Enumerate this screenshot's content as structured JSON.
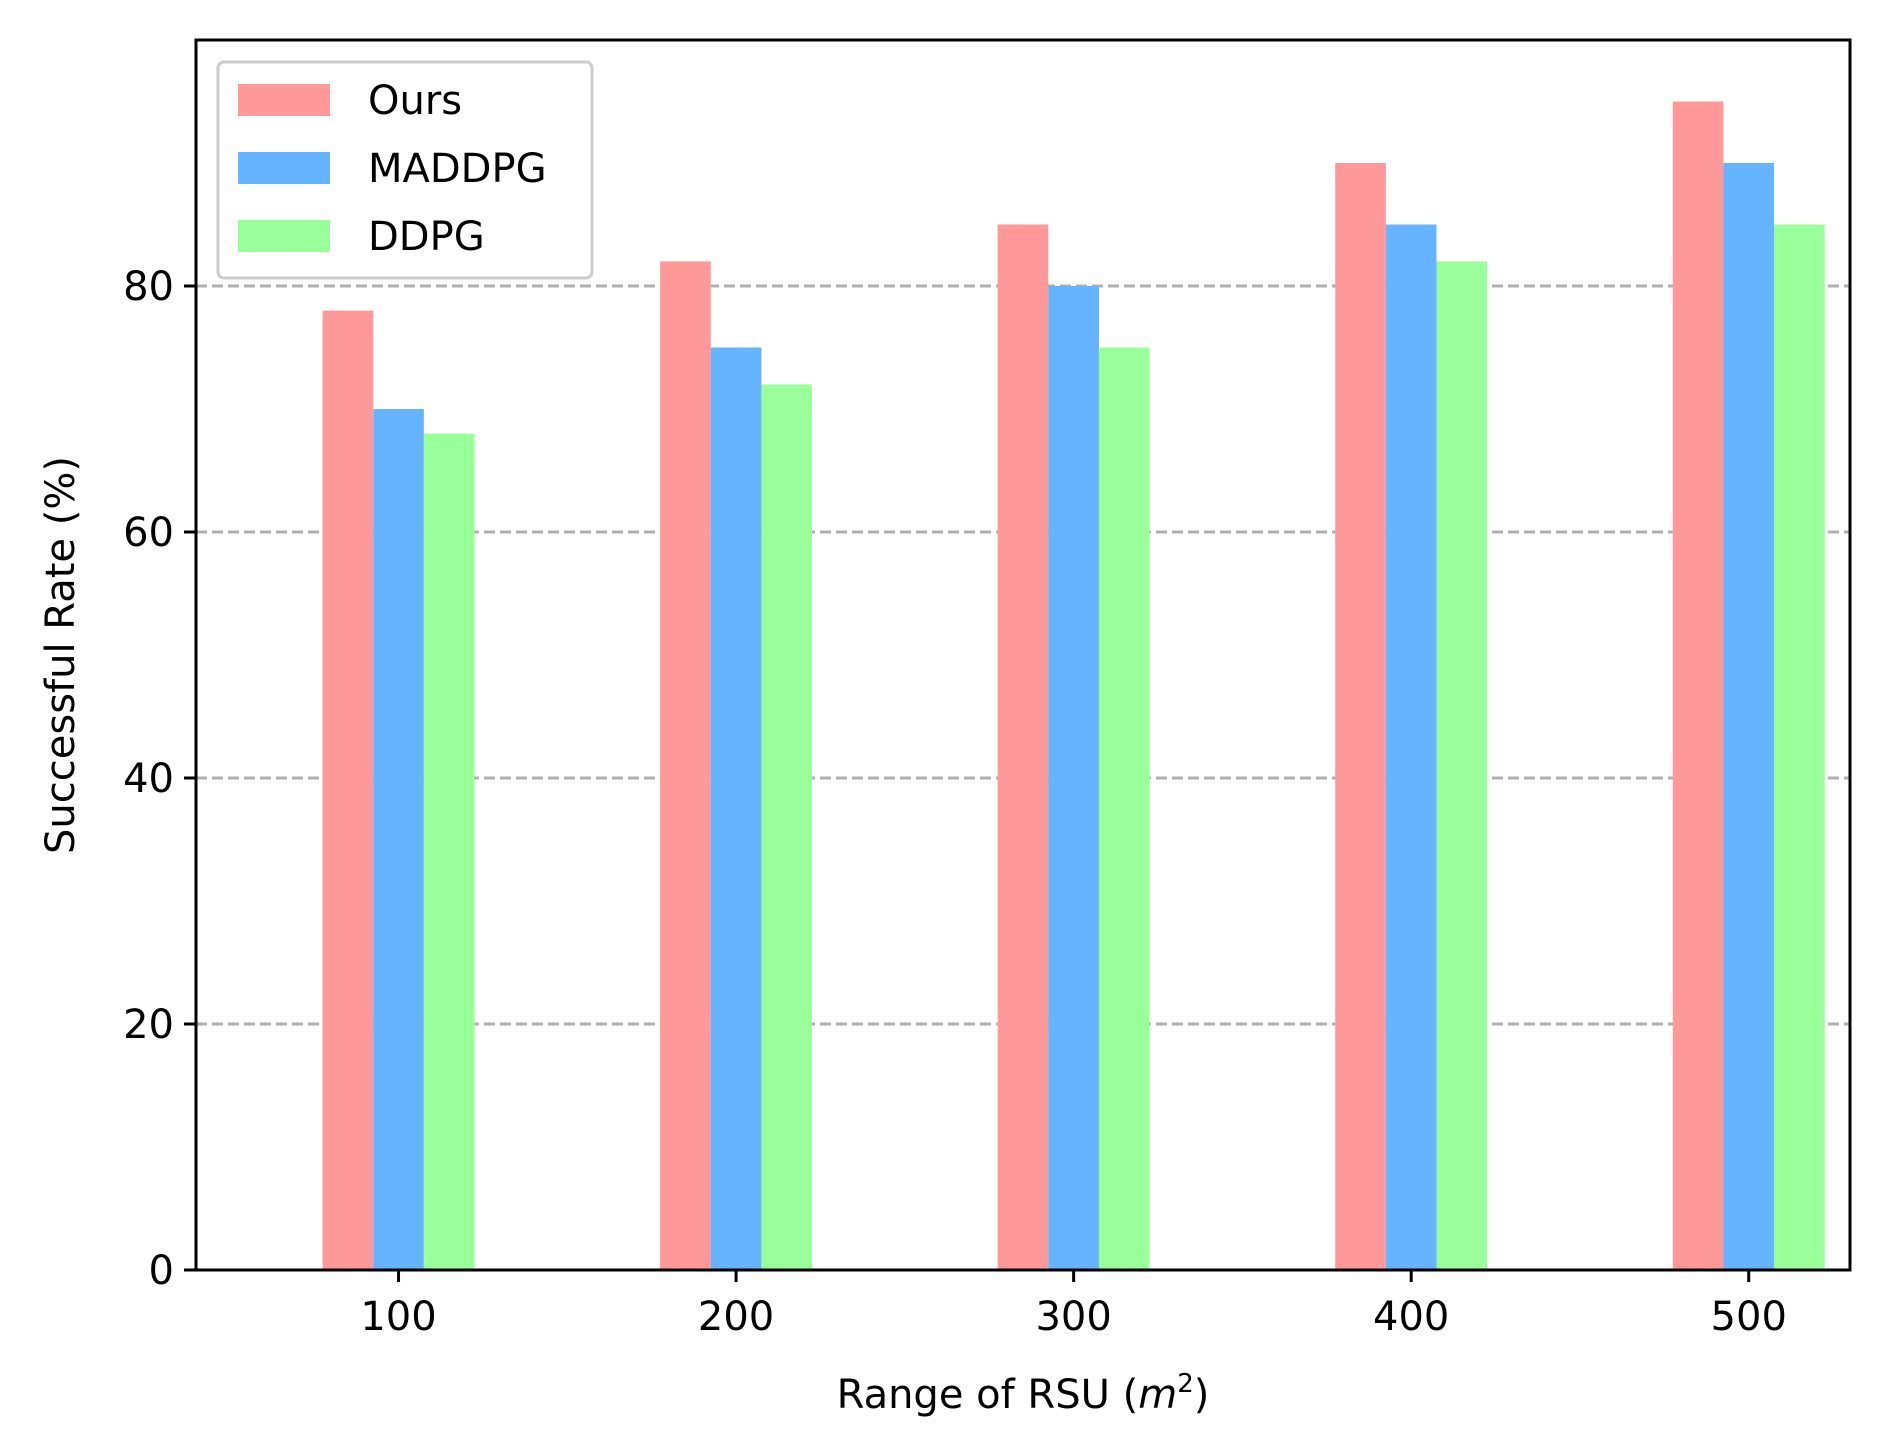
{
  "chart_data": {
    "type": "bar",
    "title": "",
    "xlabel": "Range of RSU",
    "xlabel_unit_base": "m",
    "xlabel_unit_exp": "2",
    "ylabel": "Successful Rate (%)",
    "categories": [
      "100",
      "200",
      "300",
      "400",
      "500"
    ],
    "x_values": [
      100,
      200,
      300,
      400,
      500
    ],
    "xlim": [
      40,
      530
    ],
    "ylim": [
      0,
      100
    ],
    "yticks": [
      0,
      20,
      40,
      60,
      80
    ],
    "ytick_labels": [
      "0",
      "20",
      "40",
      "60",
      "80"
    ],
    "grid": "y-dashed",
    "legend_position": "top-left",
    "series": [
      {
        "name": "Ours",
        "color": "#ff9999",
        "values": [
          78,
          82,
          85,
          90,
          95
        ]
      },
      {
        "name": "MADDPG",
        "color": "#66b3ff",
        "values": [
          70,
          75,
          80,
          85,
          90
        ]
      },
      {
        "name": "DDPG",
        "color": "#99ff99",
        "values": [
          68,
          72,
          75,
          82,
          85
        ]
      }
    ]
  }
}
